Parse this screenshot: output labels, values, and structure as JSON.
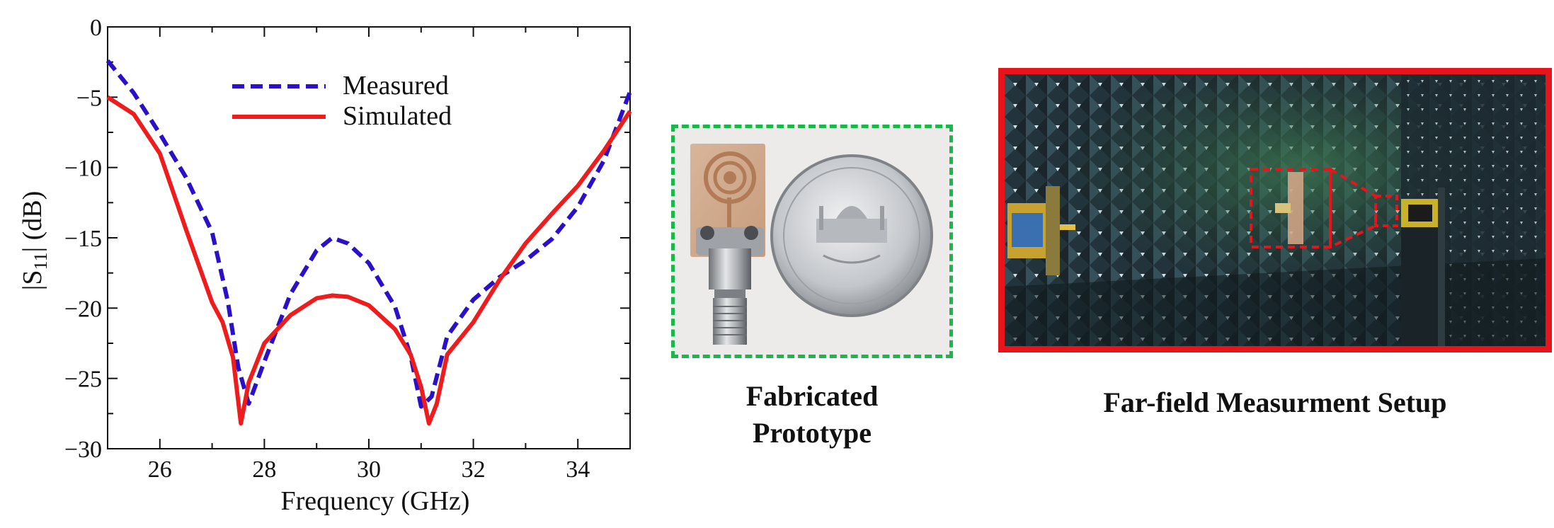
{
  "chart_data": {
    "type": "line",
    "xlabel": "Frequency (GHz)",
    "ylabel_main": "|S",
    "ylabel_sub": "11",
    "ylabel_tail": "| (dB)",
    "xlim": [
      25,
      35
    ],
    "ylim": [
      -30,
      0
    ],
    "x_ticks": [
      26,
      28,
      30,
      32,
      34
    ],
    "y_ticks": [
      0,
      -5,
      -10,
      -15,
      -20,
      -25,
      -30
    ],
    "x_tick_labels": [
      "26",
      "28",
      "30",
      "32",
      "34"
    ],
    "y_tick_labels": [
      "0",
      "−5",
      "−10",
      "−15",
      "−20",
      "−25",
      "−30"
    ],
    "grid": false,
    "legend_position": "top-center",
    "series": [
      {
        "name": "Measured",
        "color": "#2a10c8",
        "dash": "dashed",
        "x": [
          25.0,
          25.5,
          26.0,
          26.5,
          27.0,
          27.3,
          27.5,
          27.7,
          28.0,
          28.5,
          29.0,
          29.3,
          29.6,
          30.0,
          30.5,
          30.8,
          31.0,
          31.2,
          31.5,
          32.0,
          32.5,
          33.0,
          33.5,
          34.0,
          34.5,
          35.0
        ],
        "y": [
          -2.4,
          -4.7,
          -7.6,
          -10.7,
          -14.6,
          -19.5,
          -24.2,
          -26.8,
          -23.8,
          -19.0,
          -15.9,
          -15.0,
          -15.4,
          -16.8,
          -19.9,
          -23.4,
          -27.0,
          -26.3,
          -22.0,
          -19.4,
          -17.8,
          -16.6,
          -15.1,
          -12.8,
          -9.5,
          -4.6
        ]
      },
      {
        "name": "Simulated",
        "color": "#ee1c1c",
        "dash": "solid",
        "x": [
          25.0,
          25.5,
          26.0,
          26.5,
          27.0,
          27.2,
          27.4,
          27.55,
          27.7,
          28.0,
          28.5,
          29.0,
          29.3,
          29.6,
          30.0,
          30.5,
          30.8,
          31.0,
          31.15,
          31.3,
          31.5,
          32.0,
          32.5,
          33.0,
          33.5,
          34.0,
          34.5,
          35.0
        ],
        "y": [
          -5.0,
          -6.2,
          -9.0,
          -14.4,
          -19.6,
          -21.0,
          -23.5,
          -28.2,
          -25.3,
          -22.5,
          -20.5,
          -19.3,
          -19.1,
          -19.2,
          -19.8,
          -21.5,
          -23.3,
          -25.6,
          -28.2,
          -26.8,
          -23.3,
          -21.0,
          -18.0,
          -15.4,
          -13.3,
          -11.3,
          -8.8,
          -6.0
        ]
      }
    ]
  },
  "prototype_caption_line1": "Fabricated",
  "prototype_caption_line2": "Prototype",
  "farfield_caption": "Far-field Measurment Setup",
  "colors": {
    "prototype_frame": "#1ab84a",
    "farfield_frame": "#e8141c"
  }
}
